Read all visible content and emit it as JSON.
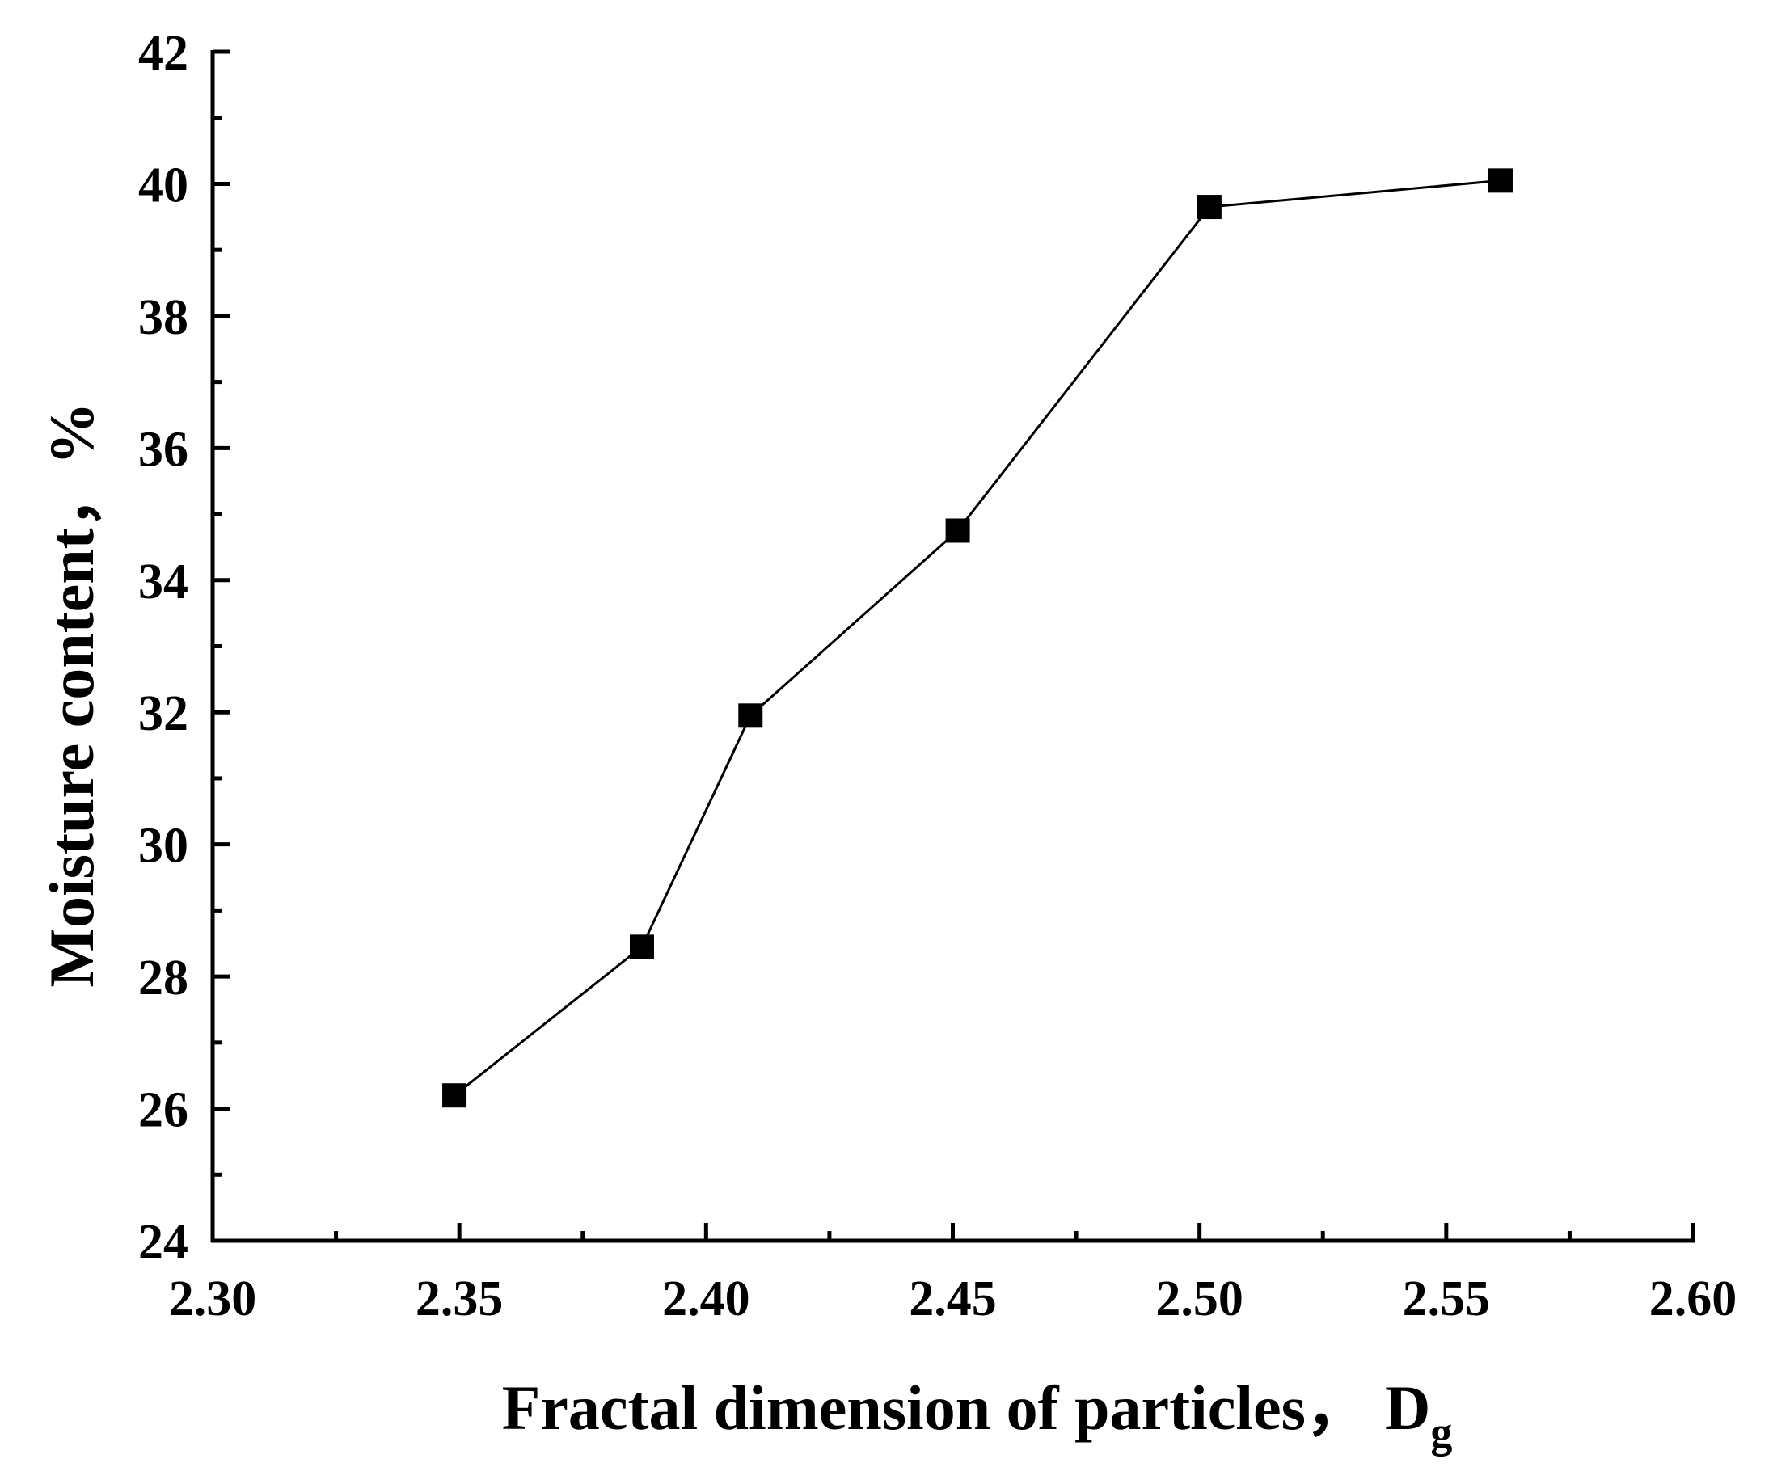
{
  "chart_data": {
    "type": "line",
    "xlabel": "Fractal dimension of particles，",
    "xlabel_symbol": "D",
    "xlabel_subscript": "g",
    "ylabel": "Moisture content，%",
    "xlim": [
      2.3,
      2.6
    ],
    "ylim": [
      24,
      42
    ],
    "x_ticks": [
      "2.30",
      "2.35",
      "2.40",
      "2.45",
      "2.50",
      "2.55",
      "2.60"
    ],
    "y_ticks": [
      "24",
      "26",
      "28",
      "30",
      "32",
      "34",
      "36",
      "38",
      "40",
      "42"
    ],
    "grid": false,
    "legend": "none",
    "marker": "square",
    "color": "#000000",
    "series": [
      {
        "x": [
          2.349,
          2.387,
          2.409,
          2.451,
          2.502,
          2.561
        ],
        "y": [
          26.2,
          28.45,
          31.95,
          34.75,
          39.65,
          40.05
        ]
      }
    ]
  }
}
